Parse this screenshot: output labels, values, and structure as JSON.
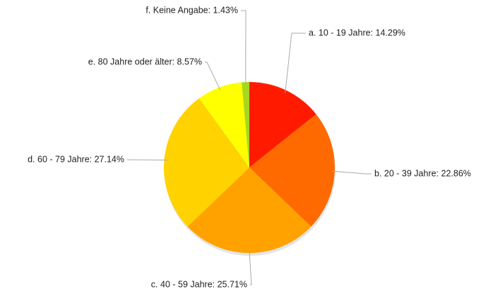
{
  "chart_data": {
    "type": "pie",
    "values": [
      14.29,
      22.86,
      25.71,
      27.14,
      8.57,
      1.43
    ],
    "value_labels": [
      "a. 10 - 19 Jahre: 14.29%",
      "b. 20 - 39 Jahre: 22.86%",
      "c. 40 - 59 Jahre: 25.71%",
      "d. 60 - 79 Jahre: 27.14%",
      "e. 80 Jahre oder älter: 8.57%",
      "f. Keine Angabe: 1.43%"
    ],
    "colors": [
      "#ff1a00",
      "#ff6a00",
      "#ffa200",
      "#ffd200",
      "#ffff00",
      "#a6d81e"
    ]
  }
}
